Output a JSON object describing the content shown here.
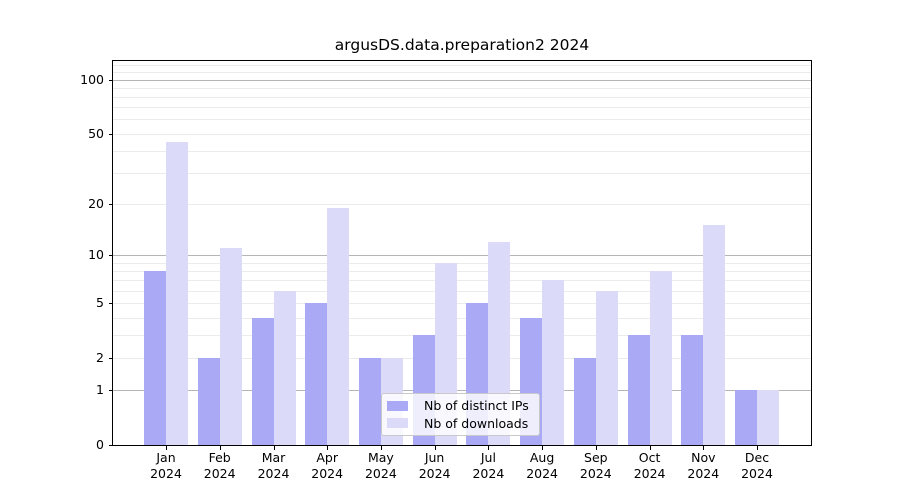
{
  "figure": {
    "background": "#ffffff",
    "text_color": "#000000",
    "axis_color": "#000000"
  },
  "chart_data": {
    "type": "bar",
    "title": "argusDS.data.preparation2 2024",
    "categories": [
      "Jan",
      "Feb",
      "Mar",
      "Apr",
      "May",
      "Jun",
      "Jul",
      "Aug",
      "Sep",
      "Oct",
      "Nov",
      "Dec"
    ],
    "x_tick_year": "2024",
    "series": [
      {
        "name": "Nb of distinct IPs",
        "color": "#a9a9f6",
        "values": [
          8,
          2,
          4,
          5,
          2,
          3,
          5,
          4,
          2,
          3,
          3,
          1
        ]
      },
      {
        "name": "Nb of downloads",
        "color": "#dbdbf9",
        "values": [
          45,
          11,
          6,
          19,
          2,
          9,
          12,
          7,
          6,
          8,
          15,
          1
        ]
      }
    ],
    "xlabel": "",
    "ylabel": "",
    "yscale": "log1p",
    "ylim": [
      0,
      126.5
    ],
    "yticks": [
      0,
      1,
      2,
      5,
      10,
      20,
      50,
      100
    ],
    "gridlines": {
      "major": [
        1,
        10,
        100
      ],
      "minor": [
        2,
        3,
        4,
        5,
        6,
        7,
        8,
        9,
        20,
        30,
        40,
        50,
        60,
        70,
        80,
        90,
        110,
        120
      ],
      "major_color": "#b5b5b5",
      "minor_color": "#ebebeb"
    },
    "legend": {
      "position": "lower center"
    },
    "grid": true
  }
}
